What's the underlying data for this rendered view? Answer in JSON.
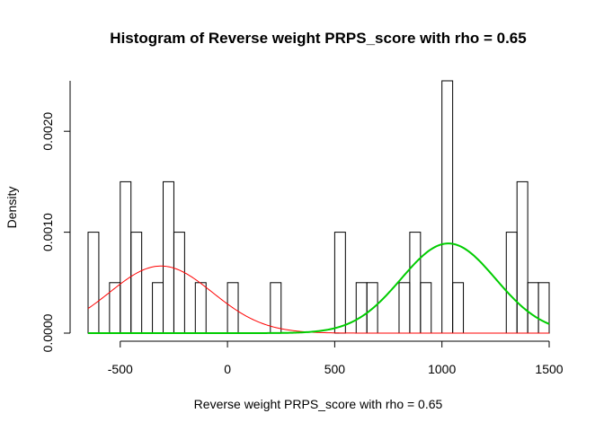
{
  "chart_data": {
    "type": "bar",
    "title": "Histogram of Reverse weight PRPS_score with rho = 0.65",
    "xlabel": "Reverse weight PRPS_score with rho = 0.65",
    "ylabel": "Density",
    "xlim": [
      -650,
      1500
    ],
    "ylim": [
      0,
      0.0025
    ],
    "x_ticks": [
      -500,
      0,
      500,
      1000,
      1500
    ],
    "x_tick_labels": [
      "-500",
      "0",
      "500",
      "1000",
      "1500"
    ],
    "y_ticks": [
      0,
      0.001,
      0.002
    ],
    "y_tick_labels": [
      "0.0000",
      "0.0010",
      "0.0020"
    ],
    "bin_width": 50,
    "bins": [
      {
        "start": -650,
        "end": -600,
        "density": 0.001
      },
      {
        "start": -550,
        "end": -500,
        "density": 0.0005
      },
      {
        "start": -500,
        "end": -450,
        "density": 0.0015
      },
      {
        "start": -450,
        "end": -400,
        "density": 0.001
      },
      {
        "start": -350,
        "end": -300,
        "density": 0.0005
      },
      {
        "start": -300,
        "end": -250,
        "density": 0.0015
      },
      {
        "start": -250,
        "end": -200,
        "density": 0.001
      },
      {
        "start": -150,
        "end": -100,
        "density": 0.0005
      },
      {
        "start": 0,
        "end": 50,
        "density": 0.0005
      },
      {
        "start": 200,
        "end": 250,
        "density": 0.0005
      },
      {
        "start": 500,
        "end": 550,
        "density": 0.001
      },
      {
        "start": 600,
        "end": 650,
        "density": 0.0005
      },
      {
        "start": 650,
        "end": 700,
        "density": 0.0005
      },
      {
        "start": 800,
        "end": 850,
        "density": 0.0005
      },
      {
        "start": 850,
        "end": 900,
        "density": 0.001
      },
      {
        "start": 900,
        "end": 950,
        "density": 0.0005
      },
      {
        "start": 1000,
        "end": 1050,
        "density": 0.0025
      },
      {
        "start": 1050,
        "end": 1100,
        "density": 0.0005
      },
      {
        "start": 1300,
        "end": 1350,
        "density": 0.001
      },
      {
        "start": 1350,
        "end": 1400,
        "density": 0.0015
      },
      {
        "start": 1400,
        "end": 1450,
        "density": 0.0005
      },
      {
        "start": 1450,
        "end": 1500,
        "density": 0.0005
      }
    ],
    "curves": [
      {
        "color": "#ff0000",
        "mean": -310,
        "sd": 240,
        "weight": 0.4,
        "x_range": [
          -650,
          1500
        ]
      },
      {
        "color": "#00cc00",
        "mean": 1030,
        "sd": 220,
        "weight": 0.49,
        "x_range": [
          -650,
          1500
        ]
      }
    ]
  }
}
